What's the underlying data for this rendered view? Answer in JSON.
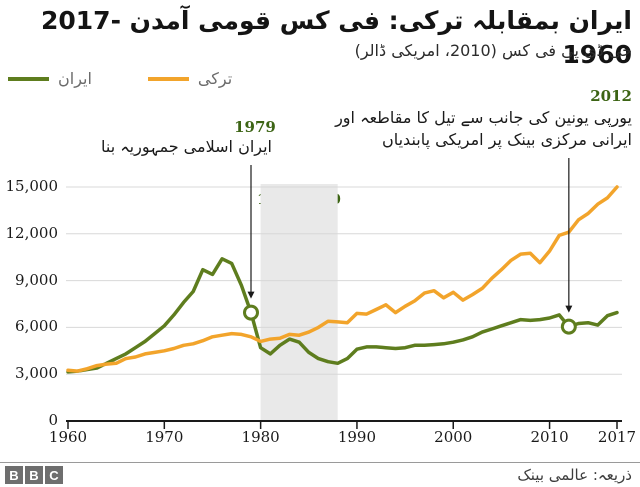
{
  "title": "ایران بمقابلہ ترکی: فی کس قومی آمدن -2017 1960",
  "subtitle": "جی ڈی پی فی کس (2010، امریکی ڈالر)",
  "legend": {
    "items": [
      {
        "label": "ایران",
        "color": "#5E7D1E"
      },
      {
        "label": "ترکی",
        "color": "#F2A42B"
      }
    ]
  },
  "annotations": {
    "a1979": {
      "year": "1979",
      "text": "ایران اسلامی جمہوریہ بنا"
    },
    "a2012": {
      "year": "2012",
      "line1": "یورپی یونین کی جانب سے تیل کا مقاطعہ اور",
      "line2": "ایرانی مرکزی بینک پر امریکی پابندیاں"
    },
    "war": {
      "years": "1988-1980",
      "line1": "ایران -",
      "line2": "عراق جنگ"
    }
  },
  "footer": {
    "source": "ذریعہ: عالمی بینک",
    "logo_letters": [
      "B",
      "B",
      "C"
    ]
  },
  "chart_data": {
    "type": "line",
    "title": "ایران بمقابلہ ترکی: فی کس قومی آمدن -2017 1960",
    "subtitle": "جی ڈی پی فی کس (2010، امریکی ڈالر)",
    "x_start": 1960,
    "x_end": 2017,
    "ylim": [
      0,
      15000
    ],
    "grid": true,
    "legend_position": "top-left",
    "series": [
      {
        "name": "ایران",
        "color": "#5E7D1E",
        "values": [
          3150,
          3200,
          3300,
          3400,
          3700,
          4000,
          4300,
          4700,
          5100,
          5600,
          6100,
          6800,
          7600,
          8300,
          9700,
          9400,
          10400,
          10100,
          8700,
          6950,
          4700,
          4300,
          4850,
          5250,
          5050,
          4400,
          4000,
          3800,
          3700,
          4000,
          4600,
          4750,
          4750,
          4700,
          4650,
          4700,
          4850,
          4850,
          4900,
          4950,
          5050,
          5200,
          5400,
          5700,
          5900,
          6100,
          6300,
          6500,
          6450,
          6500,
          6600,
          6800,
          6050,
          6250,
          6300,
          6150,
          6750,
          6950
        ]
      },
      {
        "name": "ترکی",
        "color": "#F2A42B",
        "values": [
          3250,
          3200,
          3350,
          3550,
          3650,
          3700,
          4000,
          4100,
          4300,
          4400,
          4500,
          4650,
          4850,
          4950,
          5150,
          5400,
          5500,
          5600,
          5550,
          5400,
          5100,
          5250,
          5300,
          5550,
          5500,
          5700,
          6000,
          6400,
          6350,
          6300,
          6900,
          6850,
          7150,
          7450,
          6950,
          7350,
          7700,
          8200,
          8350,
          7900,
          8250,
          7750,
          8100,
          8500,
          9150,
          9700,
          10300,
          10700,
          10750,
          10150,
          10900,
          11900,
          12100,
          12900,
          13300,
          13900,
          14300,
          15000
        ]
      }
    ],
    "yticks": [
      {
        "value": 0,
        "label": "0"
      },
      {
        "value": 3000,
        "label": "3,000"
      },
      {
        "value": 6000,
        "label": "6,000"
      },
      {
        "value": 9000,
        "label": "9,000"
      },
      {
        "value": 12000,
        "label": "12,000"
      },
      {
        "value": 15000,
        "label": "15,000"
      }
    ],
    "xticks": [
      {
        "value": 1960,
        "label": "1960"
      },
      {
        "value": 1970,
        "label": "1970"
      },
      {
        "value": 1980,
        "label": "1980"
      },
      {
        "value": 1990,
        "label": "1990"
      },
      {
        "value": 2000,
        "label": "2000"
      },
      {
        "value": 2010,
        "label": "2010"
      },
      {
        "value": 2017,
        "label": "2017"
      }
    ],
    "shaded_region": {
      "from": 1980,
      "to": 1988,
      "color": "#E9E9E9",
      "label": "1988-1980 ایران - عراق جنگ"
    },
    "markers": [
      {
        "series": 0,
        "year": 1979,
        "value": 6950,
        "label": "1979"
      },
      {
        "series": 0,
        "year": 2012,
        "value": 6050,
        "label": "2012"
      }
    ],
    "arrows": [
      {
        "year": 1979,
        "value": 6950
      },
      {
        "year": 2012,
        "value": 6050
      }
    ],
    "grid_color": "#D8D8D8",
    "axis_color": "#1A1A1A",
    "band_color": "#E9E9E9"
  }
}
